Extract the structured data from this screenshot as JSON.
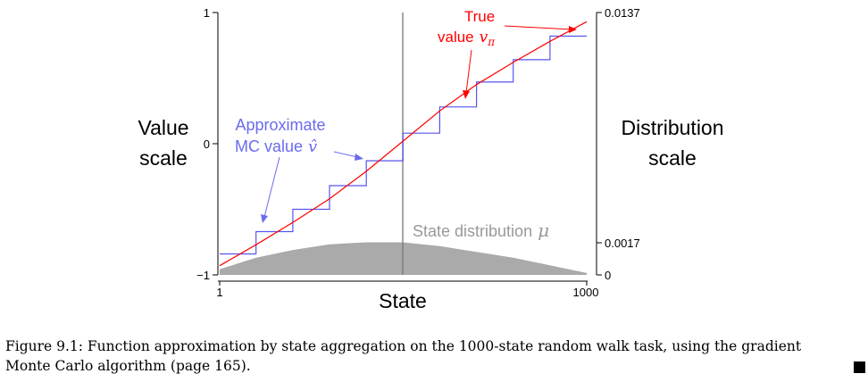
{
  "chart_data": {
    "type": "line",
    "xlabel": "State",
    "x_ticks": [
      "1",
      "1000"
    ],
    "xlim": [
      1,
      1000
    ],
    "left_axis": {
      "label_line1": "Value",
      "label_line2": "scale",
      "ticks": [
        "1",
        "0",
        "−1"
      ],
      "ylim": [
        -1,
        1
      ]
    },
    "right_axis": {
      "label_line1": "Distribution",
      "label_line2": "scale",
      "ticks": [
        "0.0137",
        "0.0017",
        "0"
      ],
      "ylim": [
        0,
        0.0137
      ]
    },
    "series": [
      {
        "name": "True value",
        "color": "#ff0000",
        "x": [
          1,
          100,
          200,
          300,
          400,
          500,
          600,
          700,
          800,
          900,
          1000
        ],
        "y": [
          -0.93,
          -0.77,
          -0.6,
          -0.42,
          -0.21,
          0.02,
          0.25,
          0.45,
          0.62,
          0.78,
          0.93
        ]
      },
      {
        "name": "Approximate MC value",
        "color": "#5555ee",
        "step_edges": [
          1,
          100,
          200,
          300,
          400,
          500,
          600,
          700,
          800,
          900,
          1000
        ],
        "values": [
          -0.84,
          -0.67,
          -0.5,
          -0.32,
          -0.13,
          0.08,
          0.28,
          0.47,
          0.64,
          0.82
        ]
      },
      {
        "name": "State distribution",
        "color": "#aaaaaa",
        "x": [
          1,
          100,
          200,
          300,
          400,
          500,
          600,
          700,
          800,
          900,
          1000
        ],
        "y": [
          0.0003,
          0.0009,
          0.0013,
          0.0016,
          0.0017,
          0.0017,
          0.0015,
          0.0012,
          0.0009,
          0.0005,
          0.0001
        ]
      }
    ],
    "annotations": {
      "true_value_line1": "True",
      "true_value_line2": "value",
      "true_value_symbol": "v",
      "true_value_subscript": "π",
      "approx_line1": "Approximate",
      "approx_line2": "MC value",
      "approx_symbol": "v̂",
      "state_dist_text": "State distribution",
      "state_dist_symbol": "μ"
    },
    "grid": false
  },
  "caption": {
    "line1": "Figure 9.1: Function approximation by state aggregation on the 1000-state random walk task, using the gradient",
    "line2": "Monte Carlo algorithm (page 165)."
  }
}
